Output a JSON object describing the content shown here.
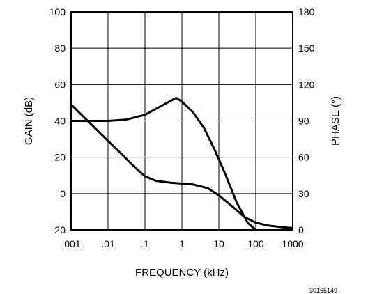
{
  "chart_data": {
    "type": "line",
    "x_scale": "log",
    "grid": true,
    "xlabel": "FREQUENCY (kHz)",
    "ylabel_left": "GAIN (dB)",
    "ylabel_right": "PHASE (°)",
    "xlim": [
      0.001,
      1000
    ],
    "ylim_left": [
      -20,
      100
    ],
    "ylim_right": [
      0,
      180
    ],
    "x_ticks": [
      0.001,
      0.01,
      0.1,
      1,
      10,
      100,
      1000
    ],
    "x_tick_labels": [
      ".001",
      ".01",
      ".1",
      "1",
      "10",
      "100",
      "1000"
    ],
    "y_left_ticks": [
      -20,
      0,
      20,
      40,
      60,
      80,
      100
    ],
    "y_left_tick_labels": [
      "-20",
      "0",
      "20",
      "40",
      "60",
      "80",
      "100"
    ],
    "y_right_ticks": [
      0,
      30,
      60,
      90,
      120,
      150,
      180
    ],
    "y_right_tick_labels": [
      "0",
      "30",
      "60",
      "90",
      "120",
      "150",
      "180"
    ],
    "series": [
      {
        "axis": "left",
        "x": [
          0.001,
          0.002,
          0.005,
          0.01,
          0.02,
          0.05,
          0.1,
          0.2,
          0.5,
          1,
          2,
          5,
          10,
          20,
          50,
          100,
          200,
          500,
          1000
        ],
        "y": [
          49,
          43,
          35,
          29,
          23,
          15,
          9.5,
          7,
          6,
          5.5,
          5,
          3,
          -1,
          -6,
          -13,
          -16,
          -17.5,
          -18.5,
          -19
        ]
      },
      {
        "axis": "right",
        "x": [
          0.001,
          0.01,
          0.03,
          0.1,
          0.2,
          0.4,
          0.7,
          1,
          2,
          4,
          8,
          15,
          30,
          60,
          100
        ],
        "y": [
          90,
          90,
          91,
          95,
          100,
          105,
          109,
          106,
          97,
          84,
          65,
          46,
          23,
          6,
          0
        ]
      }
    ],
    "figure_code": "30165149"
  }
}
